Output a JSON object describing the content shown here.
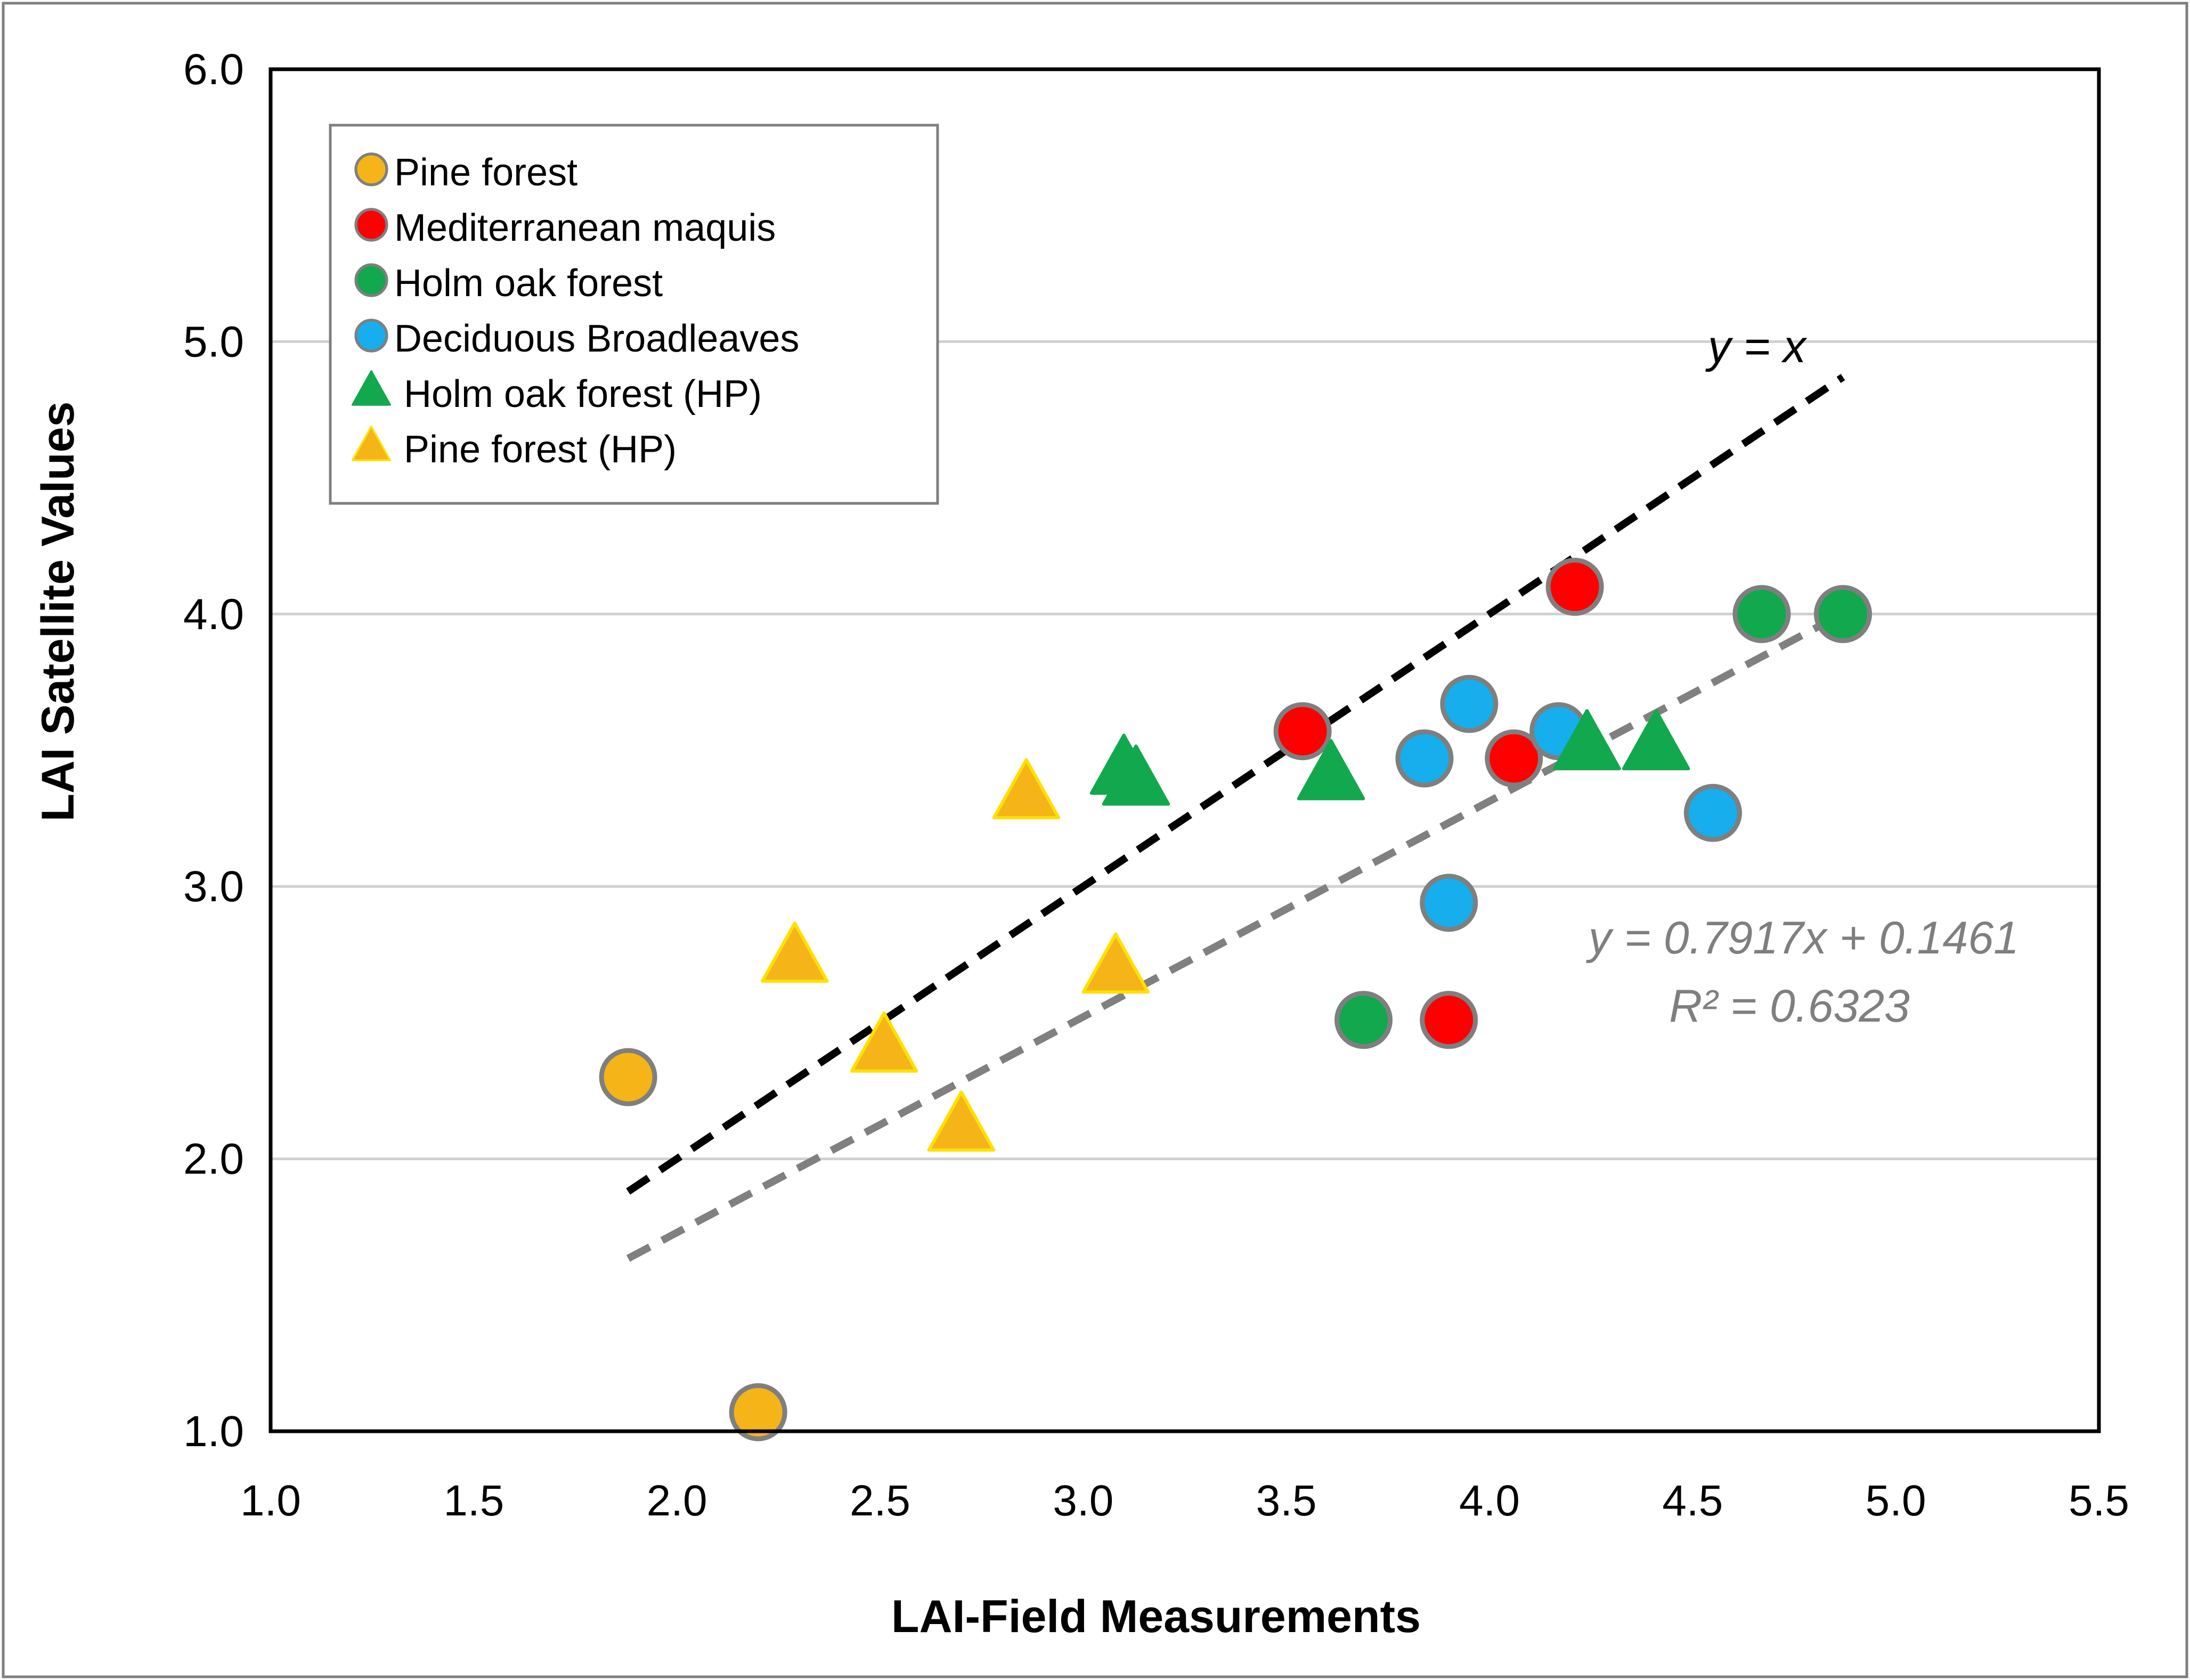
{
  "chart_data": {
    "type": "scatter",
    "xlabel": "LAI-Field Measurements",
    "ylabel": "LAI Satellite Values",
    "xlim": [
      1.0,
      5.5
    ],
    "ylim": [
      1.0,
      6.0
    ],
    "xticks": [
      "1.0",
      "1.5",
      "2.0",
      "2.5",
      "3.0",
      "3.5",
      "4.0",
      "4.5",
      "5.0",
      "5.5"
    ],
    "yticks": [
      "1.0",
      "2.0",
      "3.0",
      "4.0",
      "5.0",
      "6.0"
    ],
    "grid": "horizontal",
    "legend_position": "top-left",
    "series": [
      {
        "name": "Pine forest",
        "marker": "circle",
        "color": "#F5B418",
        "points": [
          [
            1.88,
            2.3
          ],
          [
            2.2,
            1.07
          ]
        ]
      },
      {
        "name": "Mediterranean maquis",
        "marker": "circle",
        "color": "#FF0000",
        "points": [
          [
            3.54,
            3.57
          ],
          [
            4.06,
            3.47
          ],
          [
            4.21,
            4.1
          ],
          [
            3.9,
            2.51
          ]
        ]
      },
      {
        "name": "Holm oak forest",
        "marker": "circle",
        "color": "#12A84E",
        "points": [
          [
            3.69,
            2.51
          ],
          [
            4.67,
            4.0
          ],
          [
            4.87,
            4.0
          ]
        ]
      },
      {
        "name": "Deciduous Broadleaves",
        "marker": "circle",
        "color": "#16AEEC",
        "points": [
          [
            3.84,
            3.47
          ],
          [
            3.95,
            3.67
          ],
          [
            4.17,
            3.57
          ],
          [
            3.9,
            2.94
          ],
          [
            4.55,
            3.27
          ]
        ]
      },
      {
        "name": "Holm oak forest (HP)",
        "marker": "triangle",
        "color": "#12A84E",
        "points": [
          [
            3.1,
            3.43
          ],
          [
            3.13,
            3.39
          ],
          [
            3.61,
            3.41
          ],
          [
            4.24,
            3.52
          ],
          [
            4.41,
            3.52
          ]
        ]
      },
      {
        "name": "Pine forest (HP)",
        "marker": "triangle",
        "color": "#F5B418",
        "points": [
          [
            2.29,
            2.74
          ],
          [
            2.51,
            2.41
          ],
          [
            2.7,
            2.12
          ],
          [
            2.86,
            3.34
          ],
          [
            3.08,
            2.7
          ]
        ]
      }
    ],
    "lines": [
      {
        "label": "y = x",
        "style": "dashed",
        "color": "#000000",
        "slope": 1.0,
        "intercept": 0.0,
        "x_range": [
          1.88,
          4.87
        ]
      },
      {
        "label": "y = 0.7917x + 0.1461",
        "r2_label": "R² = 0.6323",
        "style": "dashed",
        "color": "#808080",
        "slope": 0.7917,
        "intercept": 0.1461,
        "x_range": [
          1.88,
          4.87
        ]
      }
    ]
  }
}
